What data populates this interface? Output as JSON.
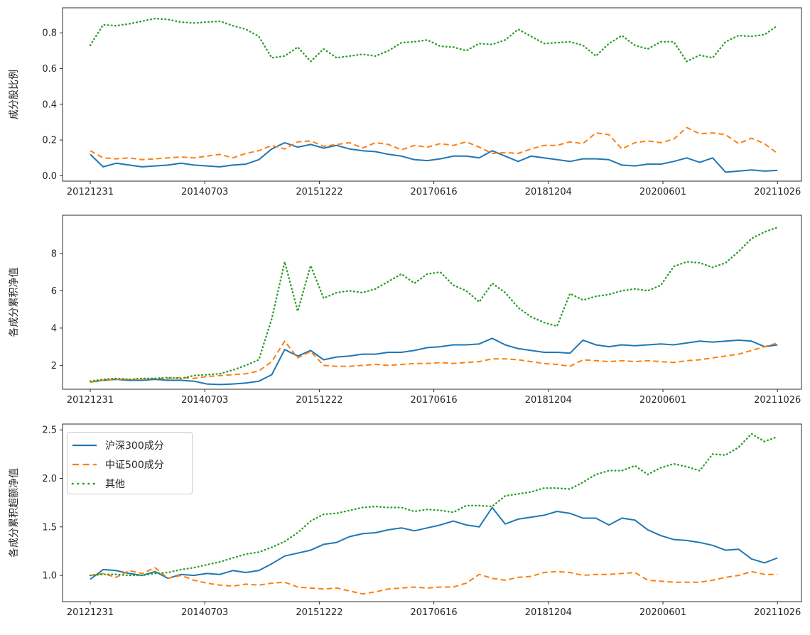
{
  "figure": {
    "background": "#ffffff",
    "text_color": "#262626",
    "spine_color": "#2b2b2b"
  },
  "legend": {
    "location": "upper-left-of-bottom-subplot",
    "entries": [
      {
        "key": "hs300",
        "label": "沪深300成分",
        "style": "solid",
        "color": "#1f77b4"
      },
      {
        "key": "zz500",
        "label": "中证500成分",
        "style": "dashed",
        "color": "#ff7f0e"
      },
      {
        "key": "other",
        "label": "其他",
        "style": "dotted",
        "color": "#2ca02c"
      }
    ]
  },
  "chart_data": [
    {
      "type": "line",
      "ylabel": "成分股比例",
      "ylim": [
        -0.03,
        0.94
      ],
      "yticks": [
        0.0,
        0.2,
        0.4,
        0.6,
        0.8
      ],
      "ytick_labels": [
        "0.0",
        "0.2",
        "0.4",
        "0.6",
        "0.8"
      ],
      "x_tick_labels": [
        "20121231",
        "20140703",
        "20151222",
        "20170616",
        "20181204",
        "20200601",
        "20211026"
      ],
      "grid": false,
      "series": [
        {
          "key": "hs300",
          "name": "沪深300成分",
          "color": "#1f77b4",
          "style": "solid",
          "values": [
            0.12,
            0.05,
            0.07,
            0.06,
            0.05,
            0.055,
            0.06,
            0.07,
            0.06,
            0.055,
            0.05,
            0.06,
            0.065,
            0.09,
            0.15,
            0.185,
            0.16,
            0.175,
            0.155,
            0.17,
            0.15,
            0.14,
            0.135,
            0.12,
            0.11,
            0.09,
            0.085,
            0.095,
            0.11,
            0.11,
            0.1,
            0.14,
            0.11,
            0.08,
            0.11,
            0.1,
            0.09,
            0.08,
            0.095,
            0.095,
            0.09,
            0.06,
            0.055,
            0.065,
            0.065,
            0.08,
            0.1,
            0.075,
            0.1,
            0.02,
            0.026,
            0.033,
            0.026,
            0.03
          ]
        },
        {
          "key": "zz500",
          "name": "中证500成分",
          "color": "#ff7f0e",
          "style": "dashed",
          "values": [
            0.14,
            0.1,
            0.095,
            0.1,
            0.09,
            0.095,
            0.1,
            0.105,
            0.1,
            0.11,
            0.12,
            0.1,
            0.125,
            0.14,
            0.17,
            0.15,
            0.19,
            0.195,
            0.165,
            0.175,
            0.185,
            0.155,
            0.185,
            0.175,
            0.145,
            0.17,
            0.16,
            0.18,
            0.17,
            0.19,
            0.16,
            0.125,
            0.13,
            0.125,
            0.15,
            0.17,
            0.17,
            0.19,
            0.18,
            0.24,
            0.23,
            0.15,
            0.185,
            0.195,
            0.185,
            0.205,
            0.27,
            0.235,
            0.24,
            0.23,
            0.18,
            0.21,
            0.18,
            0.125
          ]
        },
        {
          "key": "other",
          "name": "其他",
          "color": "#2ca02c",
          "style": "dotted",
          "values": [
            0.73,
            0.845,
            0.84,
            0.85,
            0.865,
            0.88,
            0.875,
            0.86,
            0.855,
            0.86,
            0.865,
            0.84,
            0.82,
            0.78,
            0.66,
            0.67,
            0.72,
            0.64,
            0.71,
            0.66,
            0.67,
            0.68,
            0.67,
            0.7,
            0.745,
            0.75,
            0.76,
            0.725,
            0.72,
            0.7,
            0.74,
            0.735,
            0.76,
            0.82,
            0.78,
            0.74,
            0.745,
            0.75,
            0.73,
            0.67,
            0.74,
            0.785,
            0.73,
            0.71,
            0.75,
            0.75,
            0.64,
            0.675,
            0.66,
            0.75,
            0.785,
            0.78,
            0.79,
            0.84
          ]
        }
      ]
    },
    {
      "type": "line",
      "ylabel": "各成分累积净值",
      "ylim": [
        0.72,
        10.05
      ],
      "yticks": [
        2,
        4,
        6,
        8
      ],
      "ytick_labels": [
        "2",
        "4",
        "6",
        "8"
      ],
      "x_tick_labels": [
        "20121231",
        "20140703",
        "20151222",
        "20170616",
        "20181204",
        "20200601",
        "20211026"
      ],
      "grid": false,
      "series": [
        {
          "key": "hs300",
          "name": "沪深300成分",
          "color": "#1f77b4",
          "style": "solid",
          "values": [
            1.1,
            1.2,
            1.25,
            1.2,
            1.2,
            1.25,
            1.2,
            1.2,
            1.15,
            1.0,
            0.97,
            1.0,
            1.05,
            1.15,
            1.5,
            2.85,
            2.5,
            2.8,
            2.3,
            2.45,
            2.5,
            2.6,
            2.6,
            2.7,
            2.7,
            2.8,
            2.95,
            3.0,
            3.1,
            3.1,
            3.15,
            3.45,
            3.1,
            2.9,
            2.8,
            2.7,
            2.7,
            2.65,
            3.35,
            3.1,
            3.0,
            3.1,
            3.05,
            3.1,
            3.15,
            3.1,
            3.2,
            3.3,
            3.25,
            3.3,
            3.35,
            3.3,
            3.0,
            3.1
          ]
        },
        {
          "key": "zz500",
          "name": "中证500成分",
          "color": "#ff7f0e",
          "style": "dashed",
          "values": [
            1.1,
            1.2,
            1.25,
            1.25,
            1.25,
            1.3,
            1.3,
            1.35,
            1.3,
            1.4,
            1.45,
            1.5,
            1.55,
            1.7,
            2.2,
            3.3,
            2.4,
            2.75,
            2.0,
            1.95,
            1.95,
            2.0,
            2.05,
            2.0,
            2.05,
            2.1,
            2.1,
            2.15,
            2.1,
            2.15,
            2.2,
            2.35,
            2.35,
            2.3,
            2.2,
            2.1,
            2.05,
            1.95,
            2.3,
            2.25,
            2.2,
            2.25,
            2.2,
            2.25,
            2.2,
            2.15,
            2.25,
            2.3,
            2.4,
            2.5,
            2.6,
            2.8,
            3.0,
            3.2
          ]
        },
        {
          "key": "other",
          "name": "其他",
          "color": "#2ca02c",
          "style": "dotted",
          "values": [
            1.15,
            1.25,
            1.3,
            1.25,
            1.3,
            1.3,
            1.35,
            1.3,
            1.45,
            1.5,
            1.55,
            1.75,
            2.0,
            2.3,
            4.5,
            7.55,
            4.9,
            7.35,
            5.6,
            5.9,
            6.0,
            5.9,
            6.1,
            6.5,
            6.9,
            6.4,
            6.9,
            7.0,
            6.3,
            6.0,
            5.4,
            6.4,
            5.9,
            5.1,
            4.6,
            4.3,
            4.1,
            5.85,
            5.5,
            5.7,
            5.8,
            6.0,
            6.1,
            6.0,
            6.3,
            7.3,
            7.55,
            7.5,
            7.25,
            7.5,
            8.1,
            8.8,
            9.15,
            9.4
          ]
        }
      ]
    },
    {
      "type": "line",
      "ylabel": "各成分累积超额净值",
      "ylim": [
        0.73,
        2.56
      ],
      "yticks": [
        1.0,
        1.5,
        2.0,
        2.5
      ],
      "ytick_labels": [
        "1.0",
        "1.5",
        "2.0",
        "2.5"
      ],
      "x_tick_labels": [
        "20121231",
        "20140703",
        "20151222",
        "20170616",
        "20181204",
        "20200601",
        "20211026"
      ],
      "grid": false,
      "legend": true,
      "series": [
        {
          "key": "hs300",
          "name": "沪深300成分",
          "color": "#1f77b4",
          "style": "solid",
          "values": [
            0.96,
            1.06,
            1.05,
            1.02,
            1.0,
            1.04,
            0.97,
            1.01,
            1.0,
            1.02,
            1.01,
            1.05,
            1.03,
            1.05,
            1.12,
            1.2,
            1.23,
            1.26,
            1.32,
            1.34,
            1.4,
            1.43,
            1.44,
            1.47,
            1.49,
            1.46,
            1.49,
            1.52,
            1.56,
            1.52,
            1.5,
            1.7,
            1.53,
            1.58,
            1.6,
            1.62,
            1.66,
            1.64,
            1.59,
            1.59,
            1.52,
            1.59,
            1.57,
            1.47,
            1.41,
            1.37,
            1.36,
            1.34,
            1.31,
            1.26,
            1.27,
            1.17,
            1.13,
            1.18
          ]
        },
        {
          "key": "zz500",
          "name": "中证500成分",
          "color": "#ff7f0e",
          "style": "dashed",
          "values": [
            1.0,
            1.02,
            0.98,
            1.05,
            1.02,
            1.08,
            0.97,
            1.0,
            0.95,
            0.92,
            0.9,
            0.89,
            0.91,
            0.9,
            0.92,
            0.93,
            0.88,
            0.87,
            0.86,
            0.87,
            0.84,
            0.81,
            0.83,
            0.86,
            0.87,
            0.88,
            0.87,
            0.88,
            0.88,
            0.92,
            1.01,
            0.97,
            0.95,
            0.98,
            0.99,
            1.03,
            1.04,
            1.03,
            1.0,
            1.01,
            1.01,
            1.02,
            1.03,
            0.95,
            0.94,
            0.93,
            0.93,
            0.93,
            0.95,
            0.98,
            1.0,
            1.04,
            1.01,
            1.01
          ]
        },
        {
          "key": "other",
          "name": "其他",
          "color": "#2ca02c",
          "style": "dotted",
          "values": [
            1.0,
            1.01,
            1.01,
            1.0,
            1.0,
            1.02,
            1.03,
            1.06,
            1.08,
            1.11,
            1.14,
            1.18,
            1.22,
            1.24,
            1.29,
            1.35,
            1.44,
            1.56,
            1.63,
            1.64,
            1.67,
            1.7,
            1.71,
            1.7,
            1.7,
            1.66,
            1.68,
            1.67,
            1.65,
            1.72,
            1.72,
            1.71,
            1.82,
            1.84,
            1.86,
            1.9,
            1.9,
            1.89,
            1.96,
            2.04,
            2.08,
            2.08,
            2.13,
            2.04,
            2.11,
            2.15,
            2.12,
            2.08,
            2.25,
            2.24,
            2.32,
            2.46,
            2.38,
            2.43
          ]
        }
      ]
    }
  ]
}
